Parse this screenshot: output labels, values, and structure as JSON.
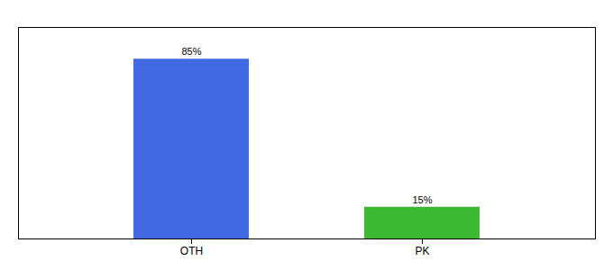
{
  "chart_data": {
    "type": "bar",
    "categories": [
      "OTH",
      "PK"
    ],
    "values": [
      85,
      15
    ],
    "colors": [
      "#4169e1",
      "#3cb832"
    ],
    "value_labels": [
      "85%",
      "15%"
    ],
    "data_labels": true,
    "ylim": [
      0,
      100
    ],
    "tick_labels": "x"
  }
}
